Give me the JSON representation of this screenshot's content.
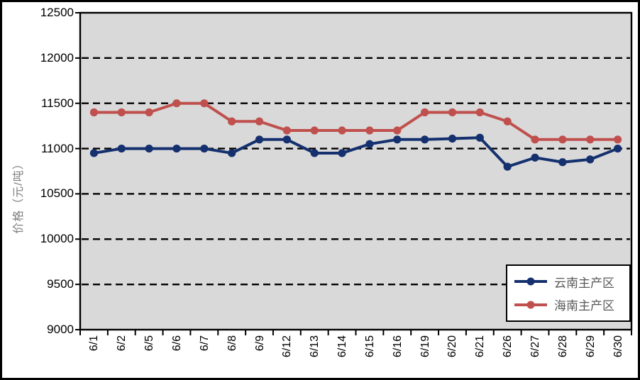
{
  "chart_data": {
    "type": "line",
    "title": "",
    "ylabel": "价格（元/吨）",
    "xlabel": "",
    "ylim": [
      9000,
      12500
    ],
    "yticks": [
      9000,
      9500,
      10000,
      10500,
      11000,
      11500,
      12000,
      12500
    ],
    "grid": "horizontal-dashed",
    "legend_position": "bottom-right",
    "categories": [
      "6/1",
      "6/2",
      "6/5",
      "6/6",
      "6/7",
      "6/8",
      "6/9",
      "6/12",
      "6/13",
      "6/14",
      "6/15",
      "6/16",
      "6/19",
      "6/20",
      "6/21",
      "6/26",
      "6/27",
      "6/28",
      "6/29",
      "6/30"
    ],
    "series": [
      {
        "name": "云南主产区",
        "color": "#14306E",
        "values": [
          10950,
          11000,
          11000,
          11000,
          11000,
          10950,
          11100,
          11100,
          10950,
          10950,
          11050,
          11100,
          11100,
          11110,
          11120,
          10800,
          10900,
          10850,
          10880,
          11000
        ]
      },
      {
        "name": "海南主产区",
        "color": "#C0504D",
        "values": [
          11400,
          11400,
          11400,
          11500,
          11500,
          11300,
          11300,
          11200,
          11200,
          11200,
          11200,
          11200,
          11400,
          11400,
          11400,
          11300,
          11100,
          11100,
          11100,
          11100
        ]
      }
    ]
  },
  "colors": {
    "plot_bg": "#D9D9D9",
    "gridline": "#000000",
    "axis_text": "#000000",
    "legend_text": "#595959",
    "y_title_text": "#7F7F7F",
    "frame": "#000000",
    "background": "#FFFFFF"
  }
}
